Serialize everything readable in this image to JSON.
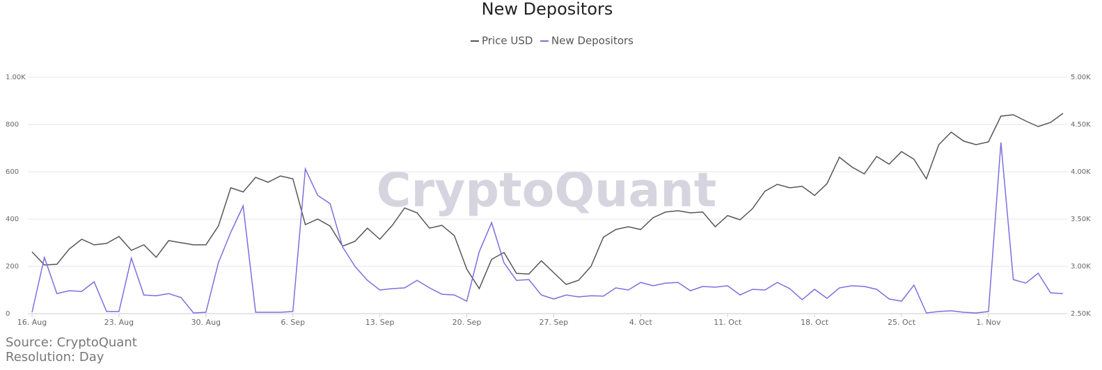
{
  "chart_data": {
    "type": "line",
    "title": "New Depositors",
    "watermark": "CryptoQuant",
    "source": "Source: CryptoQuant",
    "resolution": "Resolution: Day",
    "legend": "top",
    "grid": true,
    "categories": [
      "16. Aug",
      null,
      null,
      null,
      null,
      null,
      null,
      "23. Aug",
      null,
      null,
      null,
      null,
      null,
      null,
      "30. Aug",
      null,
      null,
      null,
      null,
      null,
      null,
      "6. Sep",
      null,
      null,
      null,
      null,
      null,
      null,
      "13. Sep",
      null,
      null,
      null,
      null,
      null,
      null,
      "20. Sep",
      null,
      null,
      null,
      null,
      null,
      null,
      "27. Sep",
      null,
      null,
      null,
      null,
      null,
      null,
      "4. Oct",
      null,
      null,
      null,
      null,
      null,
      null,
      "11. Oct",
      null,
      null,
      null,
      null,
      null,
      null,
      "18. Oct",
      null,
      null,
      null,
      null,
      null,
      null,
      "25. Oct",
      null,
      null,
      null,
      null,
      null,
      null,
      "1. Nov",
      null,
      null,
      null,
      null,
      null,
      null
    ],
    "ylim": [
      0,
      1000
    ],
    "yticks": [
      0,
      200,
      400,
      600,
      800,
      {
        "value": 1000,
        "label": "1.00K"
      }
    ],
    "y2lim": [
      2500,
      5000
    ],
    "y2ticks": [
      {
        "value": 2500,
        "label": "2.50K"
      },
      {
        "value": 3000,
        "label": "3.00K"
      },
      {
        "value": 3500,
        "label": "3.50K"
      },
      {
        "value": 4000,
        "label": "4.00K"
      },
      {
        "value": 4500,
        "label": "4.50K"
      },
      {
        "value": 5000,
        "label": "5.00K"
      }
    ],
    "series": [
      {
        "name": "Price USD",
        "color": "#555555",
        "axis": "y2",
        "values": [
          3154,
          3015,
          3022,
          3184,
          3287,
          3228,
          3243,
          3316,
          3169,
          3228,
          3096,
          3272,
          3250,
          3228,
          3228,
          3426,
          3831,
          3787,
          3941,
          3890,
          3956,
          3926,
          3441,
          3500,
          3426,
          3213,
          3265,
          3404,
          3287,
          3434,
          3618,
          3566,
          3404,
          3434,
          3324,
          2971,
          2765,
          3074,
          3147,
          2926,
          2919,
          3059,
          2934,
          2809,
          2853,
          3000,
          3309,
          3390,
          3419,
          3390,
          3515,
          3574,
          3588,
          3566,
          3574,
          3419,
          3537,
          3493,
          3610,
          3794,
          3868,
          3831,
          3846,
          3750,
          3875,
          4154,
          4051,
          3978,
          4162,
          4081,
          4213,
          4132,
          3926,
          4287,
          4419,
          4324,
          4287,
          4316,
          4588,
          4603,
          4537,
          4478,
          4522,
          4618
        ]
      },
      {
        "name": "New Depositors",
        "color": "#7b6fde",
        "values": [
          6,
          238,
          85,
          97,
          94,
          135,
          9,
          9,
          235,
          79,
          76,
          85,
          68,
          3,
          6,
          215,
          344,
          456,
          6,
          6,
          6,
          9,
          612,
          500,
          465,
          282,
          200,
          141,
          100,
          106,
          109,
          141,
          109,
          82,
          79,
          53,
          262,
          385,
          215,
          141,
          144,
          79,
          62,
          79,
          71,
          76,
          74,
          109,
          100,
          132,
          118,
          129,
          132,
          97,
          115,
          112,
          118,
          79,
          103,
          100,
          132,
          106,
          59,
          103,
          65,
          109,
          118,
          115,
          103,
          62,
          53,
          121,
          3,
          9,
          12,
          6,
          3,
          9,
          724,
          144,
          129,
          171,
          88,
          85
        ]
      }
    ]
  }
}
